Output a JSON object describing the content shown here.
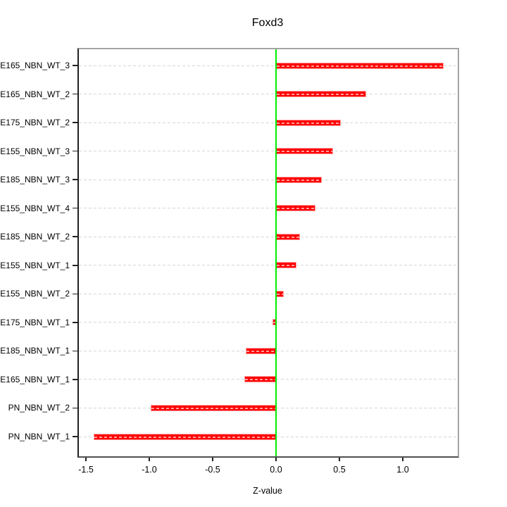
{
  "window": {
    "background": "#ffffff"
  },
  "chart_data": {
    "type": "bar",
    "orientation": "horizontal",
    "title": "Foxd3",
    "xlabel": "Z-value",
    "categories": [
      "E165_NBN_WT_3",
      "E165_NBN_WT_2",
      "E175_NBN_WT_2",
      "E155_NBN_WT_3",
      "E185_NBN_WT_3",
      "E155_NBN_WT_4",
      "E185_NBN_WT_2",
      "E155_NBN_WT_1",
      "E155_NBN_WT_2",
      "E175_NBN_WT_1",
      "E185_NBN_WT_1",
      "E165_NBN_WT_1",
      "PN_NBN_WT_2",
      "PN_NBN_WT_1"
    ],
    "values": [
      1.32,
      0.71,
      0.51,
      0.45,
      0.36,
      0.31,
      0.19,
      0.16,
      0.06,
      -0.03,
      -0.24,
      -0.25,
      -0.99,
      -1.44
    ],
    "xlim": [
      -1.5556,
      1.4222
    ],
    "xticks": [
      -1.5,
      -1.0,
      -0.5,
      0.0,
      0.5,
      1.0
    ],
    "xtick_labels": [
      "-1.5",
      "-1.0",
      "-0.5",
      "0.0",
      "0.5",
      "1.0"
    ],
    "zero_reference_line": 0,
    "grid": "horizontal-dashed",
    "legend": "none",
    "colors": {
      "bar_fill": "#ff0000",
      "bar_border": "#ff9d9d",
      "zero_line": "#00ee00",
      "grid_line": "#d6d6d6",
      "box": "#a3a3a3",
      "axis": "#212121",
      "text": "#000000",
      "background": "#ffffff"
    }
  }
}
